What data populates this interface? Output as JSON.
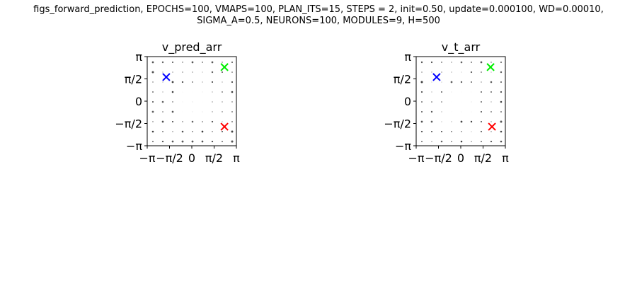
{
  "figure": {
    "title_line1": "figs_forward_prediction, EPOCHS=100, VMAPS=100, PLAN_ITS=15, STEPS = 2, init=0.50, update=0.000100, WD=0.00010,",
    "title_line2": "SIGMA_A=0.5, NEURONS=100, MODULES=9, H=500"
  },
  "chart_data": [
    {
      "type": "scatter",
      "title": "v_pred_arr",
      "xlim": [
        -3.1416,
        3.1416
      ],
      "ylim": [
        -3.1416,
        3.1416
      ],
      "xticks": [
        -3.1416,
        -1.5708,
        0,
        1.5708,
        3.1416
      ],
      "xtick_labels": [
        "−π",
        "−π/2",
        "0",
        "π/2",
        "π"
      ],
      "yticks": [
        -3.1416,
        -1.5708,
        0,
        1.5708,
        3.1416
      ],
      "ytick_labels": [
        "−π",
        "−π/2",
        "0",
        "π/2",
        "π"
      ],
      "grid": false,
      "markers": [
        {
          "label": "blue-marker",
          "x": -1.8,
          "y": 1.7,
          "color": "#0000ff"
        },
        {
          "label": "green-marker",
          "x": 2.3,
          "y": 2.4,
          "color": "#00ee00"
        },
        {
          "label": "red-marker",
          "x": 2.3,
          "y": -1.8,
          "color": "#ff0000"
        }
      ]
    },
    {
      "type": "scatter",
      "title": "v_t_arr",
      "xlim": [
        -3.1416,
        3.1416
      ],
      "ylim": [
        -3.1416,
        3.1416
      ],
      "xticks": [
        -3.1416,
        -1.5708,
        0,
        1.5708,
        3.1416
      ],
      "xtick_labels": [
        "−π",
        "−π/2",
        "0",
        "π/2",
        "π"
      ],
      "yticks": [
        -3.1416,
        -1.5708,
        0,
        1.5708,
        3.1416
      ],
      "ytick_labels": [
        "−π",
        "−π/2",
        "0",
        "π/2",
        "π"
      ],
      "grid": false,
      "markers": [
        {
          "label": "blue-marker",
          "x": -1.7,
          "y": 1.7,
          "color": "#0000ff"
        },
        {
          "label": "green-marker",
          "x": 2.1,
          "y": 2.4,
          "color": "#00ee00"
        },
        {
          "label": "red-marker",
          "x": 2.2,
          "y": -1.8,
          "color": "#ff0000"
        }
      ]
    }
  ]
}
